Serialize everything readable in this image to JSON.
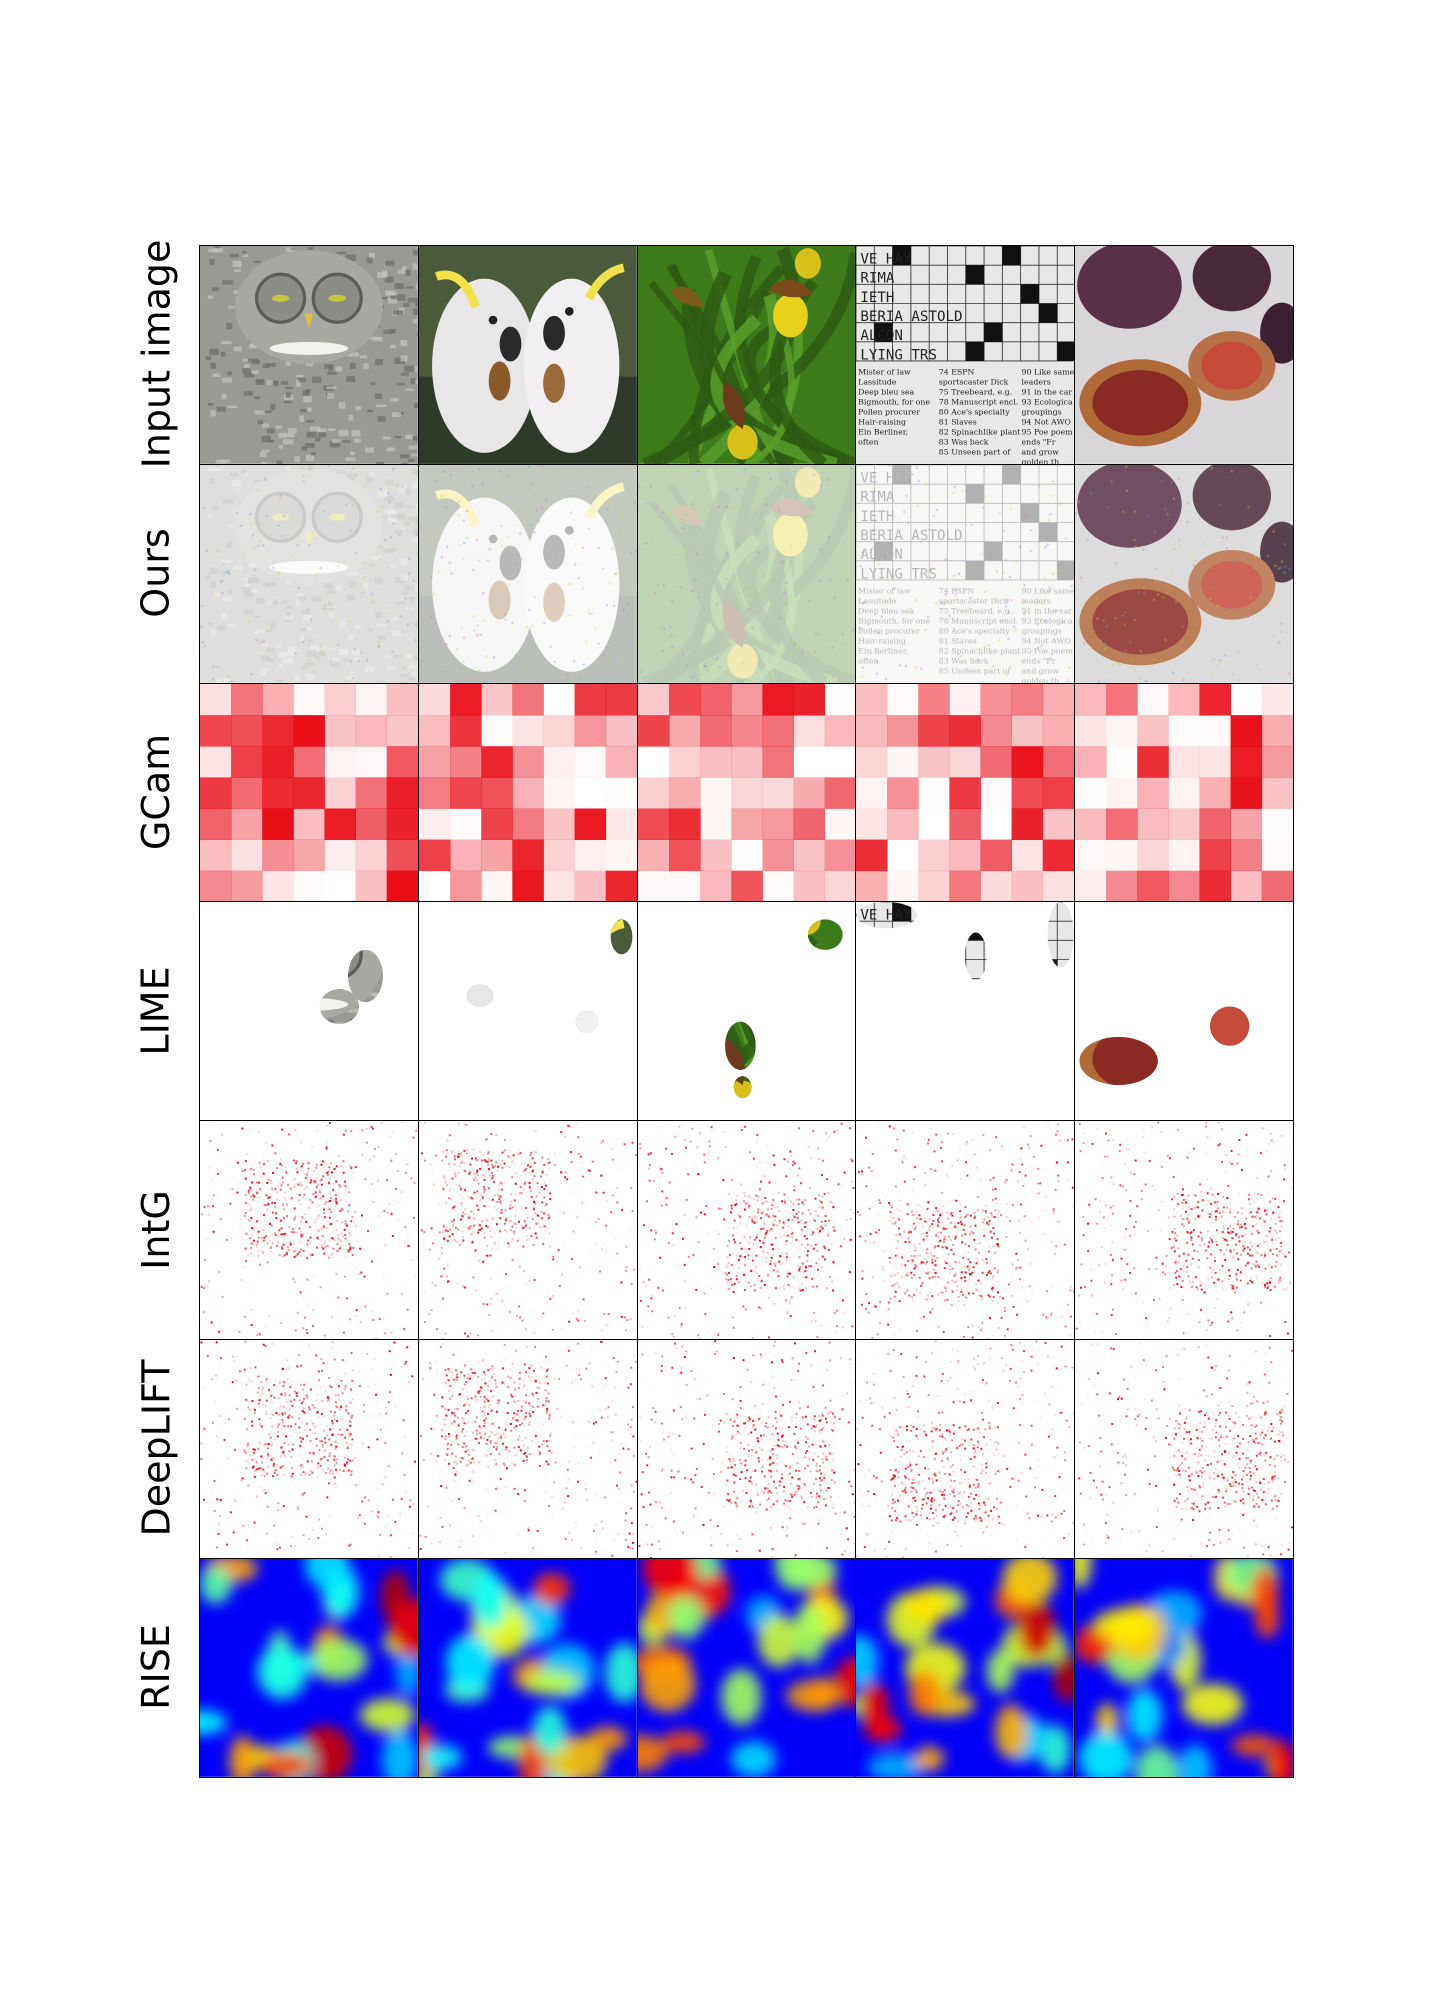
{
  "row_labels": [
    "Input image",
    "Ours",
    "GCam",
    "LIME",
    "IntG",
    "DeepLIFT",
    "RISE"
  ],
  "columns": [
    "owl",
    "cockatoos",
    "lady-slipper-orchid",
    "crossword",
    "figs"
  ],
  "crossword_text": {
    "grid_rows": [
      "VE  HAY",
      "RIMA  ",
      "IETH",
      "BERIA  ASTOLD",
      "ALCON",
      "LYING  TRS"
    ],
    "clues": [
      "Mister of law",
      "Lassitude",
      "Deep bleu sea",
      "Bigmouth, for one",
      "Pollen procurer",
      "Hair-raising",
      "Ein Berliner,",
      "often",
      "74 ESPN",
      "sportscaster Dick",
      "75 Treebeard, e.g.",
      "78 Manuscript encl.",
      "80 Ace's specialty",
      "81 Slaves",
      "82 Spinachlike plant",
      "83 Was back",
      "85 Unseen part of",
      "90 Like same",
      "leaders",
      "91 in the car",
      "93 Ecologica",
      "groupings",
      "94 Not AWO",
      "95 Poe poem",
      "ends \"Fr",
      "and grow",
      "golden th"
    ]
  },
  "colors": {
    "heat_red": "#e8000b",
    "owl_gray": "#8a8a86",
    "leaf_green": "#3d7a1a",
    "orchid_yellow": "#e6d21a",
    "fig_purple": "#5a3048",
    "jet_blue": "#0000c8"
  }
}
